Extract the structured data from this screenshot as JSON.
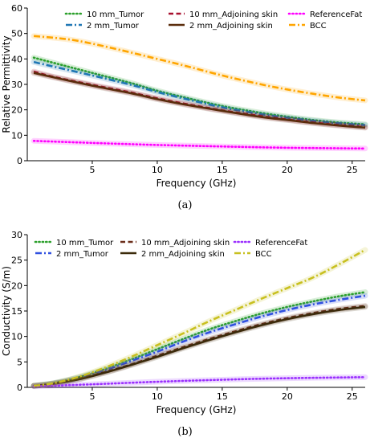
{
  "panels": [
    {
      "label": "(a)",
      "chart_data": {
        "type": "line",
        "xlabel": "Frequency (GHz)",
        "ylabel": "Relative Permittivity",
        "xlim": [
          0,
          26
        ],
        "ylim": [
          0,
          60
        ],
        "xticks": [
          5,
          10,
          15,
          20,
          25
        ],
        "yticks": [
          0,
          10,
          20,
          30,
          40,
          50,
          60
        ],
        "grid": false,
        "legend_position": "top-right, 3 columns",
        "series": [
          {
            "name": "10 mm_Tumor",
            "color": "#2ca02c",
            "style": "dotted",
            "x": [
              0.5,
              2,
              5,
              8,
              10,
              12,
              15,
              18,
              20,
              22,
              24,
              26
            ],
            "y": [
              40.5,
              38.5,
              34.5,
              30.5,
              27.5,
              25.0,
              21.5,
              18.8,
              17.3,
              16.0,
              15.0,
              14.3
            ]
          },
          {
            "name": "2 mm_Tumor",
            "color": "#1f77b4",
            "style": "dashdot",
            "x": [
              0.5,
              2,
              5,
              8,
              10,
              12,
              15,
              18,
              20,
              22,
              24,
              26
            ],
            "y": [
              38.8,
              37.0,
              33.5,
              29.8,
              27.0,
              24.5,
              21.0,
              18.3,
              16.9,
              15.7,
              14.7,
              14.0
            ]
          },
          {
            "name": "10 mm_Adjoining skin",
            "color": "#a8102e",
            "style": "dashed",
            "x": [
              0.5,
              2,
              5,
              8,
              10,
              12,
              15,
              18,
              20,
              22,
              24,
              26
            ],
            "y": [
              35.0,
              33.0,
              29.8,
              26.8,
              24.5,
              22.5,
              19.8,
              17.5,
              16.2,
              15.0,
              14.0,
              13.2
            ]
          },
          {
            "name": "2 mm_Adjoining skin",
            "color": "#5a2d0c",
            "style": "solid",
            "x": [
              0.5,
              2,
              5,
              8,
              10,
              12,
              15,
              18,
              20,
              22,
              24,
              26
            ],
            "y": [
              34.5,
              32.8,
              29.5,
              26.5,
              24.2,
              22.2,
              19.6,
              17.2,
              16.0,
              14.8,
              13.8,
              13.0
            ]
          },
          {
            "name": "ReferenceFat",
            "color": "#ff00ff",
            "style": "dotted",
            "x": [
              0.5,
              5,
              10,
              15,
              20,
              26
            ],
            "y": [
              7.8,
              7.0,
              6.2,
              5.6,
              5.1,
              4.8
            ]
          },
          {
            "name": "BCC",
            "color": "#ffa500",
            "style": "dashdot",
            "x": [
              0.5,
              3,
              5,
              8,
              10,
              12,
              15,
              18,
              20,
              22,
              24,
              26
            ],
            "y": [
              49.0,
              47.8,
              46.0,
              42.5,
              40.0,
              37.5,
              33.5,
              30.0,
              28.0,
              26.3,
              24.8,
              23.7
            ]
          }
        ]
      }
    },
    {
      "label": "(b)",
      "chart_data": {
        "type": "line",
        "xlabel": "Frequency (GHz)",
        "ylabel": "Conductivity (S/m)",
        "xlim": [
          0,
          26
        ],
        "ylim": [
          0,
          30
        ],
        "xticks": [
          5,
          10,
          15,
          20,
          25
        ],
        "yticks": [
          0,
          5,
          10,
          15,
          20,
          25,
          30
        ],
        "grid": false,
        "legend_position": "top-left, 3 columns",
        "series": [
          {
            "name": "10 mm_Tumor",
            "color": "#2ca02c",
            "style": "dotted",
            "x": [
              0.5,
              2,
              4,
              6,
              8,
              10,
              12,
              14,
              16,
              18,
              20,
              22,
              24,
              26
            ],
            "y": [
              0.3,
              0.8,
              2.0,
              3.6,
              5.5,
              7.5,
              9.5,
              11.4,
              13.0,
              14.5,
              15.8,
              16.9,
              17.9,
              18.7
            ]
          },
          {
            "name": "2 mm_Tumor",
            "color": "#3050e0",
            "style": "dashdot",
            "x": [
              0.5,
              2,
              4,
              6,
              8,
              10,
              12,
              14,
              16,
              18,
              20,
              22,
              24,
              26
            ],
            "y": [
              0.3,
              0.8,
              1.9,
              3.4,
              5.2,
              7.0,
              9.0,
              10.8,
              12.4,
              13.9,
              15.2,
              16.3,
              17.2,
              18.0
            ]
          },
          {
            "name": "10 mm_Adjoining skin",
            "color": "#6b2d1a",
            "style": "dashed",
            "x": [
              0.5,
              2,
              4,
              6,
              8,
              10,
              12,
              14,
              16,
              18,
              20,
              22,
              24,
              26
            ],
            "y": [
              0.3,
              0.7,
              1.7,
              3.0,
              4.5,
              6.2,
              7.9,
              9.5,
              11.0,
              12.4,
              13.6,
              14.6,
              15.4,
              16.0
            ]
          },
          {
            "name": "2 mm_Adjoining skin",
            "color": "#3b2a0a",
            "style": "solid",
            "x": [
              0.5,
              2,
              4,
              6,
              8,
              10,
              12,
              14,
              16,
              18,
              20,
              22,
              24,
              26
            ],
            "y": [
              0.3,
              0.7,
              1.6,
              2.9,
              4.4,
              6.0,
              7.7,
              9.3,
              10.8,
              12.2,
              13.4,
              14.4,
              15.2,
              15.8
            ]
          },
          {
            "name": "ReferenceFat",
            "color": "#9b30ff",
            "style": "dotted",
            "x": [
              0.5,
              5,
              10,
              15,
              20,
              26
            ],
            "y": [
              0.2,
              0.6,
              1.1,
              1.5,
              1.8,
              2.0
            ]
          },
          {
            "name": "BCC",
            "color": "#c8c020",
            "style": "dashdot",
            "x": [
              0.5,
              2,
              4,
              6,
              8,
              10,
              12,
              14,
              16,
              18,
              20,
              22,
              24,
              26
            ],
            "y": [
              0.3,
              0.8,
              2.1,
              3.9,
              6.0,
              8.3,
              10.6,
              13.0,
              15.2,
              17.4,
              19.5,
              21.6,
              24.2,
              27.0
            ]
          }
        ]
      }
    }
  ]
}
